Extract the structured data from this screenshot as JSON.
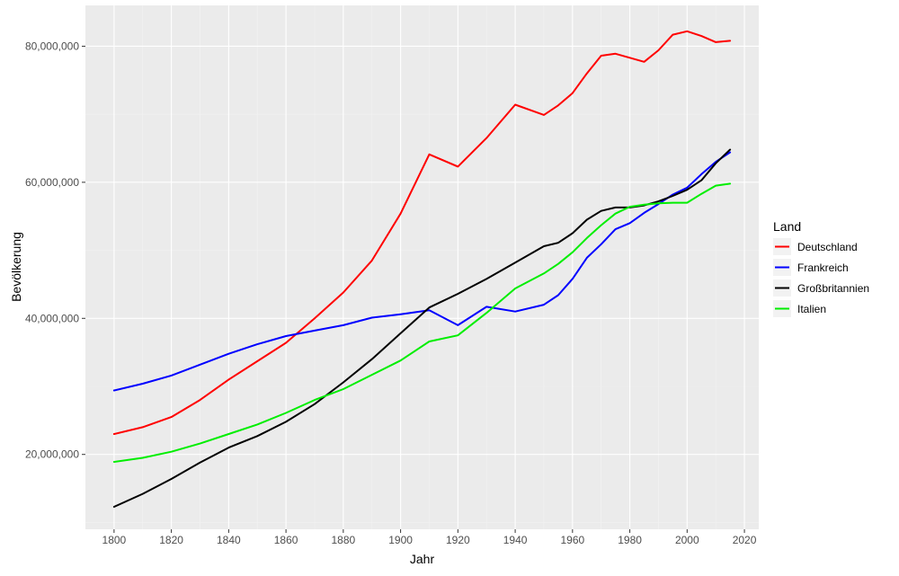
{
  "chart_data": {
    "type": "line",
    "xlabel": "Jahr",
    "ylabel": "Bevölkerung",
    "xlim": [
      1790,
      2025
    ],
    "ylim": [
      9000000,
      86000000
    ],
    "x_ticks": [
      1800,
      1820,
      1840,
      1860,
      1880,
      1900,
      1920,
      1940,
      1960,
      1980,
      2000,
      2020
    ],
    "x_tick_labels": [
      "1800",
      "1820",
      "1840",
      "1860",
      "1880",
      "1900",
      "1920",
      "1940",
      "1960",
      "1980",
      "2000",
      "2020"
    ],
    "y_ticks": [
      20000000,
      40000000,
      60000000,
      80000000
    ],
    "y_tick_labels": [
      "20,000,000",
      "40,000,000",
      "60,000,000",
      "80,000,000"
    ],
    "grid": true,
    "background": "#ebebeb",
    "legend": {
      "title": "Land",
      "position": "right"
    },
    "series": [
      {
        "name": "Deutschland",
        "color": "#ff0000",
        "points": [
          [
            1800,
            23000000
          ],
          [
            1810,
            24000000
          ],
          [
            1820,
            25500000
          ],
          [
            1830,
            28000000
          ],
          [
            1840,
            31000000
          ],
          [
            1850,
            33700000
          ],
          [
            1860,
            36400000
          ],
          [
            1870,
            40000000
          ],
          [
            1880,
            43800000
          ],
          [
            1890,
            48500000
          ],
          [
            1900,
            55400000
          ],
          [
            1910,
            64100000
          ],
          [
            1920,
            62300000
          ],
          [
            1930,
            66500000
          ],
          [
            1940,
            71400000
          ],
          [
            1950,
            69900000
          ],
          [
            1955,
            71300000
          ],
          [
            1960,
            73100000
          ],
          [
            1965,
            76000000
          ],
          [
            1970,
            78600000
          ],
          [
            1975,
            78900000
          ],
          [
            1980,
            78300000
          ],
          [
            1985,
            77700000
          ],
          [
            1990,
            79400000
          ],
          [
            1995,
            81700000
          ],
          [
            2000,
            82200000
          ],
          [
            2005,
            81500000
          ],
          [
            2010,
            80600000
          ],
          [
            2015,
            80800000
          ]
        ]
      },
      {
        "name": "Frankreich",
        "color": "#0000ff",
        "points": [
          [
            1800,
            29400000
          ],
          [
            1810,
            30400000
          ],
          [
            1820,
            31600000
          ],
          [
            1830,
            33200000
          ],
          [
            1840,
            34800000
          ],
          [
            1850,
            36200000
          ],
          [
            1860,
            37400000
          ],
          [
            1870,
            38200000
          ],
          [
            1880,
            39000000
          ],
          [
            1890,
            40100000
          ],
          [
            1900,
            40600000
          ],
          [
            1910,
            41200000
          ],
          [
            1920,
            39000000
          ],
          [
            1930,
            41700000
          ],
          [
            1940,
            41000000
          ],
          [
            1950,
            42000000
          ],
          [
            1955,
            43400000
          ],
          [
            1960,
            45800000
          ],
          [
            1965,
            48900000
          ],
          [
            1970,
            50900000
          ],
          [
            1975,
            53100000
          ],
          [
            1980,
            54000000
          ],
          [
            1985,
            55500000
          ],
          [
            1990,
            56800000
          ],
          [
            1995,
            58200000
          ],
          [
            2000,
            59200000
          ],
          [
            2005,
            61200000
          ],
          [
            2010,
            63000000
          ],
          [
            2015,
            64400000
          ]
        ]
      },
      {
        "name": "Großbritannien",
        "color": "#000000",
        "points": [
          [
            1800,
            12300000
          ],
          [
            1810,
            14200000
          ],
          [
            1820,
            16400000
          ],
          [
            1830,
            18800000
          ],
          [
            1840,
            21000000
          ],
          [
            1850,
            22700000
          ],
          [
            1860,
            24800000
          ],
          [
            1870,
            27400000
          ],
          [
            1880,
            30600000
          ],
          [
            1890,
            34000000
          ],
          [
            1900,
            37800000
          ],
          [
            1910,
            41600000
          ],
          [
            1920,
            43600000
          ],
          [
            1930,
            45800000
          ],
          [
            1940,
            48200000
          ],
          [
            1950,
            50600000
          ],
          [
            1955,
            51100000
          ],
          [
            1960,
            52500000
          ],
          [
            1965,
            54500000
          ],
          [
            1970,
            55800000
          ],
          [
            1975,
            56300000
          ],
          [
            1980,
            56300000
          ],
          [
            1985,
            56600000
          ],
          [
            1990,
            57200000
          ],
          [
            1995,
            58000000
          ],
          [
            2000,
            58900000
          ],
          [
            2005,
            60300000
          ],
          [
            2010,
            62800000
          ],
          [
            2015,
            64800000
          ]
        ]
      },
      {
        "name": "Italien",
        "color": "#00ee00",
        "points": [
          [
            1800,
            18900000
          ],
          [
            1810,
            19500000
          ],
          [
            1820,
            20400000
          ],
          [
            1830,
            21600000
          ],
          [
            1840,
            23000000
          ],
          [
            1850,
            24400000
          ],
          [
            1860,
            26100000
          ],
          [
            1870,
            28000000
          ],
          [
            1880,
            29600000
          ],
          [
            1890,
            31700000
          ],
          [
            1900,
            33800000
          ],
          [
            1910,
            36600000
          ],
          [
            1920,
            37500000
          ],
          [
            1930,
            40800000
          ],
          [
            1940,
            44400000
          ],
          [
            1950,
            46600000
          ],
          [
            1955,
            48000000
          ],
          [
            1960,
            49700000
          ],
          [
            1965,
            51800000
          ],
          [
            1970,
            53700000
          ],
          [
            1975,
            55400000
          ],
          [
            1980,
            56400000
          ],
          [
            1985,
            56700000
          ],
          [
            1990,
            56900000
          ],
          [
            1995,
            57000000
          ],
          [
            2000,
            57000000
          ],
          [
            2005,
            58300000
          ],
          [
            2010,
            59500000
          ],
          [
            2015,
            59800000
          ]
        ]
      }
    ]
  }
}
